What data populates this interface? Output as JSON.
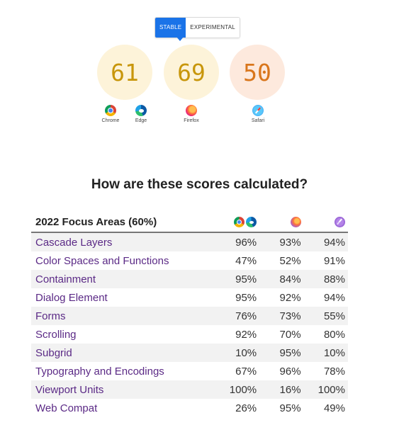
{
  "toggle": {
    "stable_label": "STABLE",
    "experimental_label": "EXPERIMENTAL",
    "active": "stable",
    "accent_color": "#1a73e8"
  },
  "scores": [
    {
      "value": "61",
      "color": "#c8960b"
    },
    {
      "value": "69",
      "color": "#c8960b"
    },
    {
      "value": "50",
      "color": "#d9761c"
    }
  ],
  "browsers": [
    {
      "label": "Chrome",
      "icon": "chrome-icon"
    },
    {
      "label": "Edge",
      "icon": "edge-icon"
    },
    {
      "label": "Firefox",
      "icon": "firefox-icon"
    },
    {
      "label": "Safari",
      "icon": "safari-icon"
    }
  ],
  "heading": "How are these scores calculated?",
  "table": {
    "header": "2022 Focus Areas (60%)",
    "header_icons": [
      "chrome-edge-icon",
      "firefox-icon",
      "safari-icon"
    ],
    "rows": [
      {
        "name": "Cascade Layers",
        "chrome_edge": "96%",
        "firefox": "93%",
        "safari": "94%"
      },
      {
        "name": "Color Spaces and Functions",
        "chrome_edge": "47%",
        "firefox": "52%",
        "safari": "91%"
      },
      {
        "name": "Containment",
        "chrome_edge": "95%",
        "firefox": "84%",
        "safari": "88%"
      },
      {
        "name": "Dialog Element",
        "chrome_edge": "95%",
        "firefox": "92%",
        "safari": "94%"
      },
      {
        "name": "Forms",
        "chrome_edge": "76%",
        "firefox": "73%",
        "safari": "55%"
      },
      {
        "name": "Scrolling",
        "chrome_edge": "92%",
        "firefox": "70%",
        "safari": "80%"
      },
      {
        "name": "Subgrid",
        "chrome_edge": "10%",
        "firefox": "95%",
        "safari": "10%"
      },
      {
        "name": "Typography and Encodings",
        "chrome_edge": "67%",
        "firefox": "96%",
        "safari": "78%"
      },
      {
        "name": "Viewport Units",
        "chrome_edge": "100%",
        "firefox": "16%",
        "safari": "100%"
      },
      {
        "name": "Web Compat",
        "chrome_edge": "26%",
        "firefox": "95%",
        "safari": "49%"
      }
    ]
  },
  "colors": {
    "link_purple": "#5b2a86",
    "row_stripe": "#f2f2f2"
  }
}
